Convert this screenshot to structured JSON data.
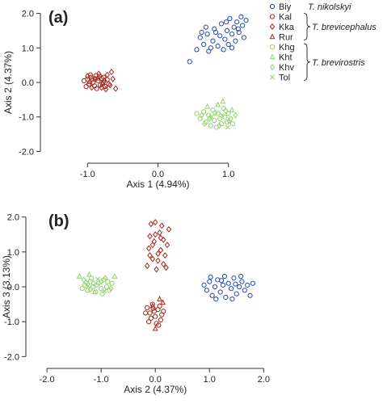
{
  "colors": {
    "blue": "#2549b8",
    "red": "#a3281c",
    "green": "#8fd16d",
    "axis": "#333333"
  },
  "legend": {
    "items": [
      {
        "code": "Biy",
        "marker": "circle",
        "color": "#2549b8"
      },
      {
        "code": "Kal",
        "marker": "circle",
        "color": "#a3281c"
      },
      {
        "code": "Kka",
        "marker": "diamond",
        "color": "#a3281c"
      },
      {
        "code": "Rur",
        "marker": "triangle",
        "color": "#a3281c"
      },
      {
        "code": "Khg",
        "marker": "circle",
        "color": "#8fd16d"
      },
      {
        "code": "Kht",
        "marker": "triangle",
        "color": "#8fd16d"
      },
      {
        "code": "Khv",
        "marker": "diamond",
        "color": "#8fd16d"
      },
      {
        "code": "Tol",
        "marker": "x",
        "color": "#8fd16d"
      }
    ],
    "groups": [
      {
        "label": "T. nikolskyi",
        "bracket": false
      },
      {
        "label": "T. brevicephalus",
        "bracket": true
      },
      {
        "label": "T. brevirostris",
        "bracket": true
      }
    ]
  },
  "chart_data": [
    {
      "type": "scatter",
      "panel_label": "(a)",
      "xlabel": "Axis 1 (4.94%)",
      "ylabel": "Axis 2 (4.37%)",
      "xlim": [
        -1.6,
        1.6
      ],
      "ylim": [
        -2.2,
        2.2
      ],
      "xticks": [
        -1.0,
        0.0,
        1.0
      ],
      "xtick_labels": [
        "-1.0",
        "0.0",
        "1.0"
      ],
      "yticks": [
        -2.0,
        -1.0,
        0.0,
        1.0,
        2.0
      ],
      "ytick_labels": [
        "-2.0",
        "-1.0",
        "0.0",
        "1.0",
        "2.0"
      ],
      "series": [
        {
          "name": "Biy",
          "marker": "circle",
          "color": "#2549b8",
          "points": [
            [
              0.45,
              0.6
            ],
            [
              0.55,
              0.95
            ],
            [
              0.6,
              1.3
            ],
            [
              0.65,
              1.1
            ],
            [
              0.7,
              1.4
            ],
            [
              0.72,
              0.9
            ],
            [
              0.78,
              1.2
            ],
            [
              0.8,
              1.55
            ],
            [
              0.85,
              1.05
            ],
            [
              0.88,
              1.35
            ],
            [
              0.9,
              1.7
            ],
            [
              0.93,
              0.95
            ],
            [
              0.95,
              1.25
            ],
            [
              0.98,
              1.5
            ],
            [
              1.0,
              1.1
            ],
            [
              1.02,
              1.85
            ],
            [
              1.05,
              1.4
            ],
            [
              1.08,
              1.6
            ],
            [
              1.1,
              1.2
            ],
            [
              1.12,
              1.75
            ],
            [
              1.15,
              1.45
            ],
            [
              1.18,
              1.9
            ],
            [
              1.2,
              1.65
            ],
            [
              1.22,
              1.3
            ],
            [
              0.68,
              1.6
            ],
            [
              0.75,
              1.0
            ],
            [
              0.82,
              1.45
            ],
            [
              0.97,
              1.75
            ],
            [
              1.05,
              1.0
            ],
            [
              1.25,
              1.8
            ],
            [
              0.62,
              1.45
            ],
            [
              1.14,
              1.55
            ]
          ]
        },
        {
          "name": "Kal",
          "marker": "circle",
          "color": "#a3281c",
          "points": [
            [
              -1.05,
              0.05
            ],
            [
              -1.0,
              0.1
            ],
            [
              -0.98,
              -0.05
            ],
            [
              -0.95,
              0.15
            ],
            [
              -0.92,
              0.0
            ],
            [
              -0.9,
              -0.1
            ],
            [
              -0.88,
              0.2
            ],
            [
              -0.85,
              0.05
            ],
            [
              -0.82,
              -0.08
            ],
            [
              -0.8,
              0.12
            ],
            [
              -0.78,
              0.0
            ],
            [
              -0.75,
              -0.12
            ],
            [
              -0.72,
              0.08
            ],
            [
              -1.02,
              -0.12
            ],
            [
              -0.96,
              0.22
            ],
            [
              -0.87,
              -0.18
            ],
            [
              -0.83,
              0.18
            ],
            [
              -0.93,
              0.08
            ],
            [
              -0.77,
              0.15
            ],
            [
              -0.7,
              -0.05
            ]
          ]
        },
        {
          "name": "Kka",
          "marker": "diamond",
          "color": "#a3281c",
          "points": [
            [
              -1.0,
              0.18
            ],
            [
              -0.94,
              -0.15
            ],
            [
              -0.89,
              0.1
            ],
            [
              -0.84,
              0.25
            ],
            [
              -0.8,
              -0.15
            ],
            [
              -0.76,
              0.05
            ],
            [
              -0.72,
              0.22
            ],
            [
              -0.68,
              -0.08
            ],
            [
              -0.64,
              0.1
            ],
            [
              -0.6,
              -0.18
            ],
            [
              -0.66,
              0.3
            ],
            [
              -0.74,
              -0.2
            ]
          ]
        },
        {
          "name": "Rur",
          "marker": "triangle",
          "color": "#a3281c",
          "points": [
            [
              -0.97,
              0.02
            ],
            [
              -0.86,
              0.12
            ],
            [
              -0.79,
              -0.04
            ]
          ]
        },
        {
          "name": "Khg",
          "marker": "circle",
          "color": "#8fd16d",
          "points": [
            [
              0.55,
              -0.9
            ],
            [
              0.6,
              -1.05
            ],
            [
              0.65,
              -0.85
            ],
            [
              0.68,
              -1.15
            ],
            [
              0.72,
              -0.95
            ],
            [
              0.75,
              -1.25
            ],
            [
              0.78,
              -0.8
            ],
            [
              0.8,
              -1.1
            ],
            [
              0.83,
              -1.3
            ],
            [
              0.85,
              -0.9
            ],
            [
              0.88,
              -1.05
            ],
            [
              0.9,
              -1.2
            ],
            [
              0.93,
              -0.75
            ],
            [
              0.95,
              -1.0
            ],
            [
              0.98,
              -1.15
            ],
            [
              1.0,
              -0.9
            ],
            [
              1.03,
              -1.05
            ],
            [
              1.06,
              -1.2
            ]
          ]
        },
        {
          "name": "Kht",
          "marker": "triangle",
          "color": "#8fd16d",
          "points": [
            [
              0.7,
              -0.7
            ],
            [
              0.85,
              -0.65
            ],
            [
              0.92,
              -0.55
            ],
            [
              1.05,
              -0.8
            ]
          ]
        },
        {
          "name": "Khv",
          "marker": "diamond",
          "color": "#8fd16d",
          "points": [
            [
              0.62,
              -0.95
            ],
            [
              0.73,
              -1.05
            ],
            [
              0.81,
              -0.88
            ],
            [
              0.87,
              -1.25
            ],
            [
              0.96,
              -0.82
            ],
            [
              1.01,
              -1.12
            ],
            [
              1.1,
              -0.95
            ],
            [
              0.66,
              -1.2
            ]
          ]
        },
        {
          "name": "Tol",
          "marker": "x",
          "color": "#8fd16d",
          "points": [
            [
              0.76,
              -1.0
            ],
            [
              0.91,
              -0.95
            ],
            [
              0.99,
              -1.3
            ]
          ]
        }
      ]
    },
    {
      "type": "scatter",
      "panel_label": "(b)",
      "xlabel": "Axis 2 (4.37%)",
      "ylabel": "Axis 3 (3.13%)",
      "xlim": [
        -2.3,
        2.1
      ],
      "ylim": [
        -2.2,
        2.2
      ],
      "xticks": [
        -2.0,
        -1.0,
        0.0,
        1.0,
        2.0
      ],
      "xtick_labels": [
        "-2.0",
        "-1.0",
        "0.0",
        "1.0",
        "2.0"
      ],
      "yticks": [
        -2.0,
        -1.0,
        0.0,
        1.0,
        2.0
      ],
      "ytick_labels": [
        "-2.0",
        "-1.0",
        "0.0",
        "1.0",
        "2.0"
      ],
      "series": [
        {
          "name": "Biy",
          "marker": "circle",
          "color": "#2549b8",
          "points": [
            [
              0.9,
              0.05
            ],
            [
              0.95,
              -0.1
            ],
            [
              1.0,
              0.15
            ],
            [
              1.05,
              -0.25
            ],
            [
              1.1,
              0.0
            ],
            [
              1.15,
              0.2
            ],
            [
              1.2,
              -0.15
            ],
            [
              1.25,
              0.05
            ],
            [
              1.3,
              -0.3
            ],
            [
              1.35,
              0.1
            ],
            [
              1.4,
              -0.05
            ],
            [
              1.45,
              0.25
            ],
            [
              1.5,
              -0.2
            ],
            [
              1.55,
              0.0
            ],
            [
              1.6,
              0.15
            ],
            [
              1.65,
              -0.1
            ],
            [
              1.7,
              0.05
            ],
            [
              1.75,
              -0.25
            ],
            [
              1.8,
              0.1
            ],
            [
              1.12,
              -0.35
            ],
            [
              1.28,
              0.3
            ],
            [
              1.42,
              -0.35
            ],
            [
              1.58,
              0.3
            ],
            [
              1.02,
              0.28
            ],
            [
              1.22,
              0.18
            ],
            [
              1.48,
              0.08
            ]
          ]
        },
        {
          "name": "Kal",
          "marker": "circle",
          "color": "#a3281c",
          "points": [
            [
              -0.15,
              -0.6
            ],
            [
              -0.1,
              -0.75
            ],
            [
              -0.05,
              -0.5
            ],
            [
              0.0,
              -0.85
            ],
            [
              0.05,
              -0.65
            ],
            [
              0.1,
              -0.95
            ],
            [
              -0.12,
              -1.0
            ],
            [
              -0.02,
              -0.7
            ],
            [
              0.08,
              -0.55
            ],
            [
              0.12,
              -0.8
            ],
            [
              -0.08,
              -0.9
            ],
            [
              0.02,
              -1.05
            ],
            [
              0.15,
              -0.7
            ],
            [
              -0.18,
              -0.75
            ],
            [
              0.06,
              -1.1
            ],
            [
              -0.04,
              -0.62
            ]
          ]
        },
        {
          "name": "Kka",
          "marker": "diamond",
          "color": "#a3281c",
          "points": [
            [
              -0.15,
              0.6
            ],
            [
              -0.1,
              0.9
            ],
            [
              -0.05,
              1.2
            ],
            [
              0.0,
              1.5
            ],
            [
              0.05,
              0.75
            ],
            [
              0.1,
              1.05
            ],
            [
              0.15,
              1.35
            ],
            [
              0.2,
              0.55
            ],
            [
              0.25,
              1.65
            ],
            [
              -0.08,
              1.8
            ],
            [
              0.02,
              0.5
            ],
            [
              0.12,
              1.75
            ],
            [
              -0.12,
              1.1
            ],
            [
              0.18,
              0.9
            ],
            [
              -0.02,
              1.3
            ],
            [
              0.08,
              1.55
            ],
            [
              0.22,
              1.2
            ],
            [
              0.05,
              0.95
            ],
            [
              -0.1,
              1.45
            ],
            [
              0.15,
              0.65
            ],
            [
              -0.05,
              0.8
            ],
            [
              0.1,
              1.4
            ],
            [
              0.0,
              1.85
            ]
          ]
        },
        {
          "name": "Rur",
          "marker": "triangle",
          "color": "#a3281c",
          "points": [
            [
              -0.05,
              -0.55
            ],
            [
              0.08,
              -0.35
            ],
            [
              0.0,
              -1.2
            ],
            [
              0.14,
              -0.45
            ]
          ]
        },
        {
          "name": "Khg",
          "marker": "circle",
          "color": "#8fd16d",
          "points": [
            [
              -1.3,
              0.05
            ],
            [
              -1.25,
              -0.1
            ],
            [
              -1.2,
              0.15
            ],
            [
              -1.15,
              0.0
            ],
            [
              -1.1,
              -0.15
            ],
            [
              -1.05,
              0.1
            ],
            [
              -1.0,
              -0.05
            ],
            [
              -0.95,
              0.2
            ],
            [
              -0.9,
              0.0
            ],
            [
              -0.85,
              -0.1
            ],
            [
              -0.8,
              0.1
            ],
            [
              -1.35,
              -0.05
            ],
            [
              -1.18,
              0.25
            ],
            [
              -0.98,
              -0.2
            ],
            [
              -1.08,
              0.05
            ],
            [
              -0.88,
              0.15
            ]
          ]
        },
        {
          "name": "Kht",
          "marker": "triangle",
          "color": "#8fd16d",
          "points": [
            [
              -1.4,
              0.3
            ],
            [
              -1.22,
              0.35
            ],
            [
              -0.75,
              0.3
            ],
            [
              -1.12,
              -0.15
            ]
          ]
        },
        {
          "name": "Khv",
          "marker": "diamond",
          "color": "#8fd16d",
          "points": [
            [
              -1.32,
              0.2
            ],
            [
              -1.2,
              -0.08
            ],
            [
              -1.0,
              0.15
            ],
            [
              -0.82,
              -0.05
            ],
            [
              -1.14,
              0.1
            ],
            [
              -0.92,
              0.25
            ],
            [
              -1.28,
              0.12
            ]
          ]
        },
        {
          "name": "Tol",
          "marker": "x",
          "color": "#8fd16d",
          "points": [
            [
              -1.06,
              0.22
            ],
            [
              -0.94,
              -0.12
            ],
            [
              -1.24,
              0.02
            ]
          ]
        }
      ]
    }
  ]
}
